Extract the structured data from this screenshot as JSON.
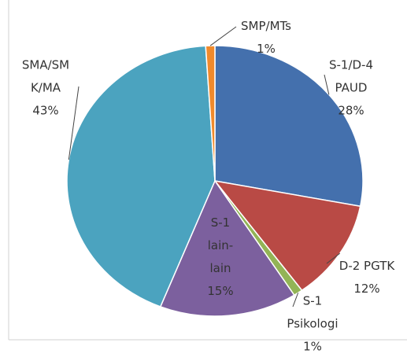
{
  "chart_data": {
    "type": "pie",
    "categories": [
      "S-1/D-4 PAUD",
      "D-2 PGTK",
      "S-1 Psikologi",
      "S-1 lain-lain",
      "SMA/SMK/MA",
      "SMP/MTs"
    ],
    "values": [
      28,
      12,
      1,
      15,
      43,
      1
    ],
    "value_labels": [
      "28%",
      "12%",
      "1%",
      "15%",
      "43%",
      "1%"
    ],
    "colors": [
      "#4470ad",
      "#b94a45",
      "#93b456",
      "#7c609e",
      "#4ba3bf",
      "#f08a2c"
    ]
  }
}
